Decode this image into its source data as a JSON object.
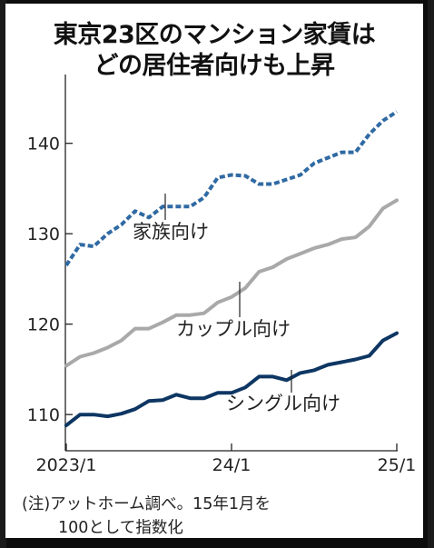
{
  "title": {
    "line1": "東京23区のマンション家賃は",
    "line2": "どの居住者向けも上昇"
  },
  "note": {
    "line1": "(注)アットホーム調べ。15年1月を",
    "line2": "100として指数化"
  },
  "chart_data": {
    "type": "line",
    "x_tick_labels": [
      "2023/1",
      "24/1",
      "25/1"
    ],
    "y_ticks": [
      110,
      120,
      130,
      140
    ],
    "ylim": [
      107,
      146
    ],
    "x": [
      "2023/1",
      "2023/2",
      "2023/3",
      "2023/4",
      "2023/5",
      "2023/6",
      "2023/7",
      "2023/8",
      "2023/9",
      "2023/10",
      "2023/11",
      "2023/12",
      "2024/1",
      "2024/2",
      "2024/3",
      "2024/4",
      "2024/5",
      "2024/6",
      "2024/7",
      "2024/8",
      "2024/9",
      "2024/10",
      "2024/11",
      "2024/12",
      "2025/1"
    ],
    "series": [
      {
        "name": "家族向け",
        "color": "#2f6aa3",
        "style": "dotted",
        "values": [
          126.5,
          128.8,
          128.6,
          130.0,
          131.0,
          132.5,
          131.8,
          133.0,
          133.0,
          133.0,
          134.0,
          136.2,
          136.5,
          136.4,
          135.5,
          135.5,
          136.0,
          136.5,
          137.8,
          138.4,
          139.0,
          139.0,
          141.0,
          142.5,
          143.5
        ]
      },
      {
        "name": "カップル向け",
        "color": "#a9a9a9",
        "style": "solid",
        "values": [
          115.4,
          116.4,
          116.8,
          117.4,
          118.2,
          119.5,
          119.5,
          120.2,
          121.0,
          121.0,
          121.2,
          122.4,
          123.0,
          124.0,
          125.8,
          126.3,
          127.2,
          127.8,
          128.4,
          128.8,
          129.4,
          129.6,
          130.8,
          132.8,
          133.7
        ]
      },
      {
        "name": "シングル向け",
        "color": "#0e3663",
        "style": "solid",
        "values": [
          108.8,
          110.0,
          110.0,
          109.8,
          110.1,
          110.6,
          111.5,
          111.6,
          112.2,
          111.8,
          111.8,
          112.4,
          112.4,
          113.0,
          114.2,
          114.2,
          113.8,
          114.6,
          114.9,
          115.5,
          115.8,
          116.1,
          116.5,
          118.2,
          119.0
        ]
      }
    ]
  }
}
